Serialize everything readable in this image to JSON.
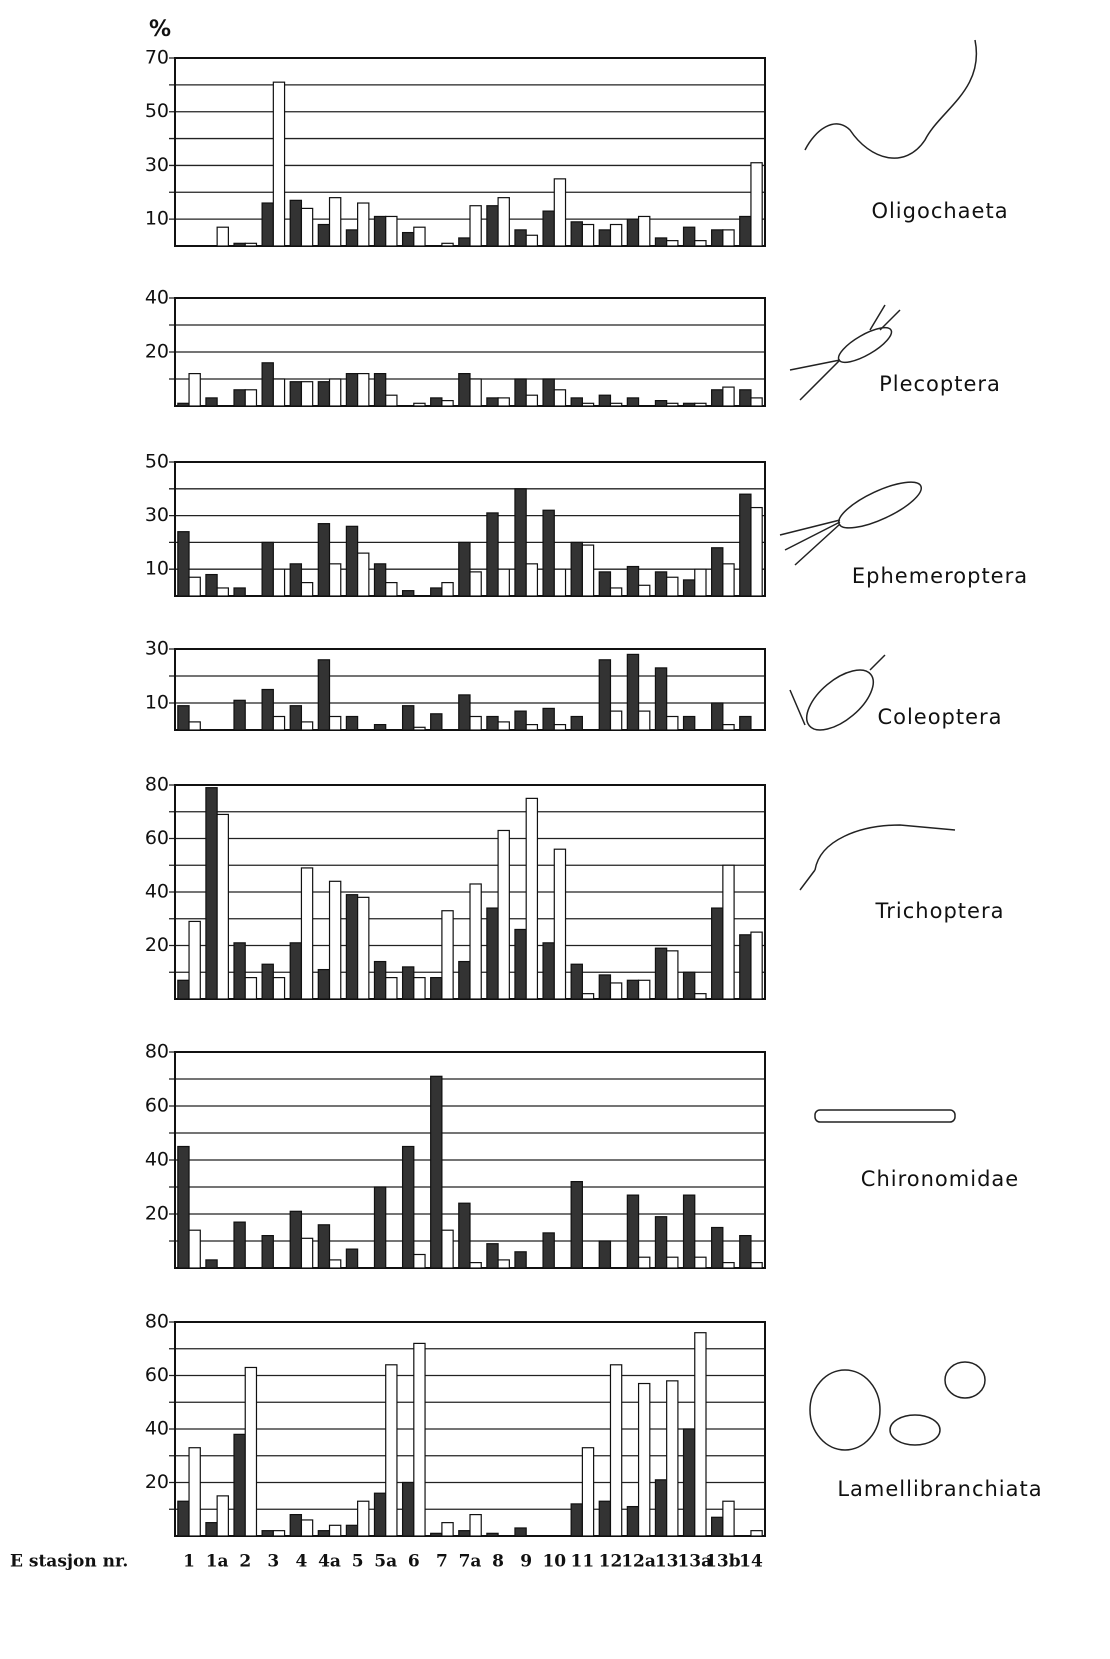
{
  "x_axis": {
    "label": "E stasjon nr.",
    "categories": [
      "1",
      "1a",
      "2",
      "3",
      "4",
      "4a",
      "5",
      "5a",
      "6",
      "7",
      "7a",
      "8",
      "9",
      "10",
      "11",
      "12",
      "12a",
      "13",
      "13a",
      "13b",
      "14"
    ]
  },
  "chart_data": [
    {
      "type": "bar",
      "title": "Oligochaeta",
      "ylabel": "%",
      "ylim": [
        0,
        70
      ],
      "yticks": [
        10,
        30,
        50,
        70
      ],
      "minor_yticks": [
        20,
        40,
        60
      ],
      "grid": true,
      "series": [
        {
          "color": "#333333",
          "values": [
            0,
            0,
            1,
            16,
            17,
            8,
            6,
            11,
            5,
            0,
            3,
            15,
            6,
            13,
            9,
            6,
            10,
            3,
            7,
            6,
            11
          ]
        },
        {
          "color": "#ffffff",
          "values": [
            0,
            7,
            1,
            61,
            14,
            18,
            16,
            11,
            7,
            1,
            15,
            18,
            4,
            25,
            8,
            8,
            11,
            2,
            2,
            6,
            31
          ]
        }
      ]
    },
    {
      "type": "bar",
      "title": "Plecoptera",
      "ylim": [
        0,
        40
      ],
      "yticks": [
        20,
        40
      ],
      "minor_yticks": [
        10,
        30
      ],
      "grid": true,
      "series": [
        {
          "color": "#333333",
          "values": [
            1,
            3,
            6,
            16,
            9,
            9,
            12,
            12,
            0,
            3,
            12,
            3,
            10,
            10,
            3,
            4,
            3,
            2,
            1,
            6,
            6
          ]
        },
        {
          "color": "#ffffff",
          "values": [
            12,
            0,
            6,
            10,
            9,
            10,
            12,
            4,
            1,
            2,
            10,
            3,
            4,
            6,
            1,
            1,
            0,
            1,
            1,
            7,
            3
          ]
        }
      ]
    },
    {
      "type": "bar",
      "title": "Ephemeroptera",
      "ylim": [
        0,
        50
      ],
      "yticks": [
        10,
        30,
        50
      ],
      "minor_yticks": [
        20,
        40
      ],
      "grid": true,
      "series": [
        {
          "color": "#333333",
          "values": [
            24,
            8,
            3,
            20,
            12,
            27,
            26,
            12,
            2,
            3,
            20,
            31,
            40,
            32,
            20,
            9,
            11,
            9,
            6,
            18,
            38
          ]
        },
        {
          "color": "#ffffff",
          "values": [
            7,
            3,
            0,
            10,
            5,
            12,
            16,
            5,
            0,
            5,
            9,
            10,
            12,
            10,
            19,
            3,
            4,
            7,
            10,
            12,
            33
          ]
        }
      ]
    },
    {
      "type": "bar",
      "title": "Coleoptera",
      "ylim": [
        0,
        30
      ],
      "yticks": [
        10,
        30
      ],
      "minor_yticks": [
        20
      ],
      "grid": true,
      "series": [
        {
          "color": "#333333",
          "values": [
            9,
            0,
            11,
            15,
            9,
            26,
            5,
            2,
            9,
            6,
            13,
            5,
            7,
            8,
            5,
            26,
            28,
            23,
            5,
            10,
            5
          ]
        },
        {
          "color": "#ffffff",
          "values": [
            3,
            0,
            0,
            5,
            3,
            5,
            0,
            0,
            1,
            0,
            5,
            3,
            2,
            2,
            0,
            7,
            7,
            5,
            0,
            2,
            0
          ]
        }
      ]
    },
    {
      "type": "bar",
      "title": "Trichoptera",
      "ylim": [
        0,
        80
      ],
      "yticks": [
        20,
        40,
        60,
        80
      ],
      "minor_yticks": [
        10,
        30,
        50,
        70
      ],
      "grid": true,
      "series": [
        {
          "color": "#333333",
          "values": [
            7,
            79,
            21,
            13,
            21,
            11,
            39,
            14,
            12,
            8,
            14,
            34,
            26,
            21,
            13,
            9,
            7,
            19,
            10,
            34,
            24
          ]
        },
        {
          "color": "#ffffff",
          "values": [
            29,
            69,
            8,
            8,
            49,
            44,
            38,
            8,
            8,
            33,
            43,
            63,
            75,
            56,
            2,
            6,
            7,
            18,
            2,
            50,
            25
          ]
        }
      ]
    },
    {
      "type": "bar",
      "title": "Chironomidae",
      "ylim": [
        0,
        80
      ],
      "yticks": [
        20,
        40,
        60,
        80
      ],
      "minor_yticks": [
        10,
        30,
        50,
        70
      ],
      "grid": true,
      "series": [
        {
          "color": "#333333",
          "values": [
            45,
            3,
            17,
            12,
            21,
            16,
            7,
            30,
            45,
            71,
            24,
            9,
            6,
            13,
            32,
            10,
            27,
            19,
            27,
            15,
            12
          ]
        },
        {
          "color": "#ffffff",
          "values": [
            14,
            0,
            0,
            0,
            11,
            3,
            0,
            0,
            5,
            14,
            2,
            3,
            0,
            0,
            0,
            0,
            4,
            4,
            4,
            2,
            2
          ]
        }
      ]
    },
    {
      "type": "bar",
      "title": "Lamellibranchiata",
      "ylim": [
        0,
        80
      ],
      "yticks": [
        20,
        40,
        60,
        80
      ],
      "minor_yticks": [
        10,
        30,
        50,
        70
      ],
      "grid": true,
      "series": [
        {
          "color": "#333333",
          "values": [
            13,
            5,
            38,
            2,
            8,
            2,
            4,
            16,
            20,
            1,
            2,
            1,
            3,
            0,
            12,
            13,
            11,
            21,
            40,
            7,
            0
          ]
        },
        {
          "color": "#ffffff",
          "values": [
            33,
            15,
            63,
            2,
            6,
            4,
            13,
            64,
            72,
            5,
            8,
            0,
            0,
            0,
            33,
            64,
            57,
            58,
            76,
            13,
            2
          ]
        }
      ]
    }
  ]
}
